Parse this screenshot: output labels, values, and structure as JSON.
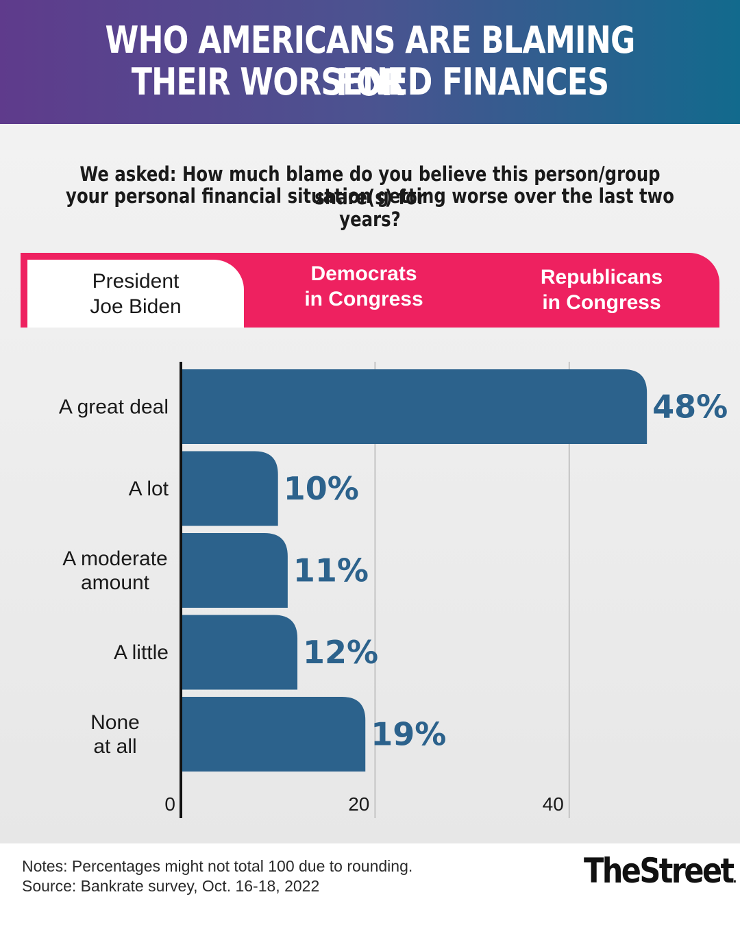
{
  "header": {
    "title_line_1": "WHO AMERICANS ARE BLAMING FOR",
    "title_line_2": "THEIR WORSENED FINANCES"
  },
  "question": {
    "line_1": "We asked: How much blame do you believe this person/group share(s) for",
    "line_2": "your personal financial situation getting worse over the last two years?"
  },
  "tabs": [
    {
      "line_1": "President",
      "line_2": "Joe Biden",
      "selected": true
    },
    {
      "line_1": "Democrats",
      "line_2": "in Congress",
      "selected": false
    },
    {
      "line_1": "Republicans",
      "line_2": "in Congress",
      "selected": false
    }
  ],
  "colors": {
    "header_gradient_start": "#5f3b8c",
    "header_gradient_end": "#126a8d",
    "tab_accent": "#ee2160",
    "bar": "#2c628c",
    "axis": "#111111",
    "grid": "#c4c4c4"
  },
  "chart_data": {
    "type": "bar",
    "orientation": "horizontal",
    "categories": [
      [
        "A great deal"
      ],
      [
        "A lot"
      ],
      [
        "A moderate",
        "amount"
      ],
      [
        "A little"
      ],
      [
        "None",
        "at all"
      ]
    ],
    "values": [
      48,
      10,
      11,
      12,
      19
    ],
    "value_labels": [
      "48%",
      "10%",
      "11%",
      "12%",
      "19%"
    ],
    "x_ticks": [
      0,
      20,
      40
    ],
    "xlim": [
      0,
      55
    ],
    "grid": "vertical lines at 20 and 40"
  },
  "footer": {
    "note": "Notes: Percentages might not total 100 due to rounding.",
    "source": "Source: Bankrate survey, Oct. 16-18, 2022",
    "logo_text": "TheStreet",
    "logo_mark": "."
  }
}
